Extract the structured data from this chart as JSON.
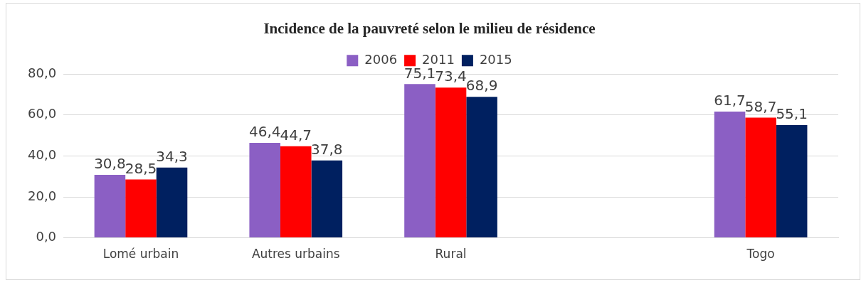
{
  "chart_data": {
    "type": "bar",
    "title": "Incidence de la pauvreté selon le milieu de résidence",
    "categories": [
      "Lomé urbain",
      "Autres urbains",
      "Rural",
      null,
      "Togo"
    ],
    "series": [
      {
        "name": "2006",
        "color": "#8b5fc4",
        "values": [
          30.8,
          46.4,
          75.1,
          null,
          61.7
        ],
        "value_labels": [
          "30,8",
          "46,4",
          "75,1",
          null,
          "61,7"
        ]
      },
      {
        "name": "2011",
        "color": "#ff0000",
        "values": [
          28.5,
          44.7,
          73.4,
          null,
          58.7
        ],
        "value_labels": [
          "28,5",
          "44,7",
          "73,4",
          null,
          "58,7"
        ]
      },
      {
        "name": "2015",
        "color": "#002060",
        "values": [
          34.3,
          37.8,
          68.9,
          null,
          55.1
        ],
        "value_labels": [
          "34,3",
          "37,8",
          "68,9",
          null,
          "55,1"
        ]
      }
    ],
    "ylim": [
      0,
      80
    ],
    "yticks": [
      {
        "value": 0,
        "label": "0,0"
      },
      {
        "value": 20,
        "label": "20,0"
      },
      {
        "value": 40,
        "label": "40,0"
      },
      {
        "value": 60,
        "label": "60,0"
      },
      {
        "value": 80,
        "label": "80,0"
      }
    ],
    "grid": "y",
    "legend": "top"
  }
}
